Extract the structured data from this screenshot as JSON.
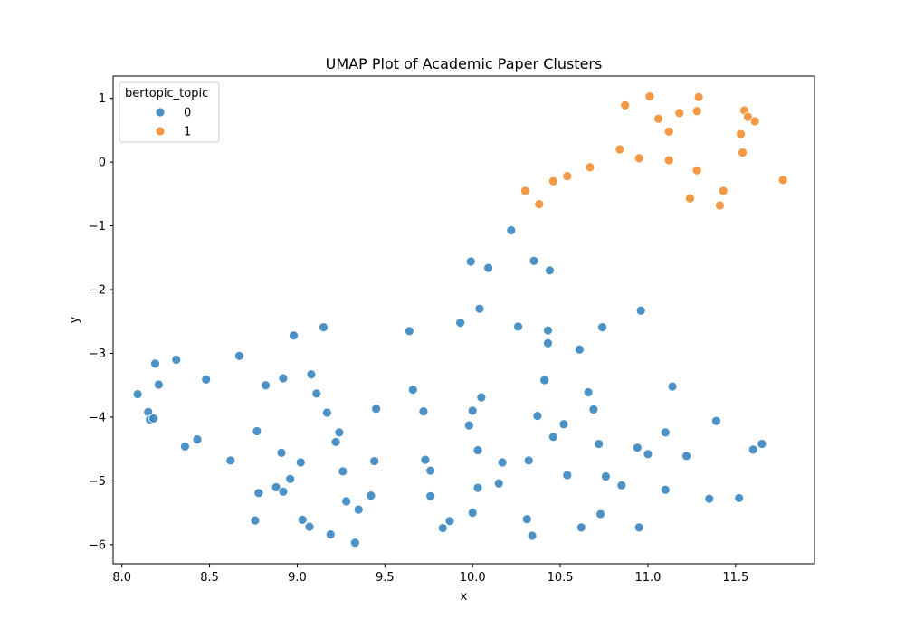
{
  "chart_data": {
    "type": "scatter",
    "title": "UMAP Plot of Academic Paper Clusters",
    "xlabel": "x",
    "ylabel": "y",
    "xlim": [
      7.95,
      11.95
    ],
    "ylim": [
      -6.3,
      1.35
    ],
    "xticks": [
      8.0,
      8.5,
      9.0,
      9.5,
      10.0,
      10.5,
      11.0,
      11.5
    ],
    "xtick_labels": [
      "8.0",
      "8.5",
      "9.0",
      "9.5",
      "10.0",
      "10.5",
      "11.0",
      "11.5"
    ],
    "yticks": [
      1,
      0,
      -1,
      -2,
      -3,
      -4,
      -5,
      -6
    ],
    "ytick_labels": [
      "1",
      "0",
      "−1",
      "−2",
      "−3",
      "−4",
      "−5",
      "−6"
    ],
    "grid": false,
    "legend": {
      "title": "bertopic_topic",
      "placement": "top-left",
      "entries": [
        "0",
        "1"
      ]
    },
    "series": [
      {
        "name": "0",
        "color": "#3a86c1",
        "points": [
          [
            8.09,
            -3.64
          ],
          [
            8.15,
            -3.92
          ],
          [
            8.16,
            -4.04
          ],
          [
            8.18,
            -4.02
          ],
          [
            8.19,
            -3.16
          ],
          [
            8.21,
            -3.49
          ],
          [
            8.31,
            -3.1
          ],
          [
            8.36,
            -4.46
          ],
          [
            8.43,
            -4.35
          ],
          [
            8.48,
            -3.41
          ],
          [
            8.62,
            -4.68
          ],
          [
            8.67,
            -3.04
          ],
          [
            8.76,
            -5.62
          ],
          [
            8.77,
            -4.22
          ],
          [
            8.78,
            -5.19
          ],
          [
            8.82,
            -3.5
          ],
          [
            8.88,
            -5.1
          ],
          [
            8.91,
            -4.56
          ],
          [
            8.92,
            -5.17
          ],
          [
            8.92,
            -3.39
          ],
          [
            8.96,
            -4.97
          ],
          [
            8.98,
            -2.72
          ],
          [
            9.02,
            -4.71
          ],
          [
            9.03,
            -5.61
          ],
          [
            9.07,
            -5.72
          ],
          [
            9.08,
            -3.33
          ],
          [
            9.11,
            -3.63
          ],
          [
            9.15,
            -2.59
          ],
          [
            9.17,
            -3.93
          ],
          [
            9.19,
            -5.84
          ],
          [
            9.22,
            -4.39
          ],
          [
            9.24,
            -4.24
          ],
          [
            9.26,
            -4.85
          ],
          [
            9.28,
            -5.32
          ],
          [
            9.33,
            -5.97
          ],
          [
            9.35,
            -5.45
          ],
          [
            9.42,
            -5.23
          ],
          [
            9.44,
            -4.69
          ],
          [
            9.45,
            -3.87
          ],
          [
            9.64,
            -2.65
          ],
          [
            9.66,
            -3.57
          ],
          [
            9.72,
            -3.91
          ],
          [
            9.73,
            -4.67
          ],
          [
            9.76,
            -4.84
          ],
          [
            9.76,
            -5.24
          ],
          [
            9.83,
            -5.74
          ],
          [
            9.87,
            -5.63
          ],
          [
            9.93,
            -2.52
          ],
          [
            9.98,
            -4.13
          ],
          [
            9.99,
            -1.56
          ],
          [
            10.0,
            -3.9
          ],
          [
            10.0,
            -5.5
          ],
          [
            10.03,
            -4.52
          ],
          [
            10.03,
            -5.11
          ],
          [
            10.04,
            -2.3
          ],
          [
            10.05,
            -3.69
          ],
          [
            10.09,
            -1.66
          ],
          [
            10.15,
            -5.04
          ],
          [
            10.17,
            -4.71
          ],
          [
            10.22,
            -1.07
          ],
          [
            10.26,
            -2.58
          ],
          [
            10.31,
            -5.6
          ],
          [
            10.32,
            -4.68
          ],
          [
            10.34,
            -5.86
          ],
          [
            10.35,
            -1.55
          ],
          [
            10.37,
            -3.98
          ],
          [
            10.41,
            -3.42
          ],
          [
            10.43,
            -2.64
          ],
          [
            10.43,
            -2.84
          ],
          [
            10.44,
            -1.7
          ],
          [
            10.46,
            -4.31
          ],
          [
            10.52,
            -4.11
          ],
          [
            10.54,
            -4.91
          ],
          [
            10.61,
            -2.94
          ],
          [
            10.62,
            -5.73
          ],
          [
            10.66,
            -3.61
          ],
          [
            10.69,
            -3.88
          ],
          [
            10.72,
            -4.42
          ],
          [
            10.73,
            -5.52
          ],
          [
            10.74,
            -2.59
          ],
          [
            10.76,
            -4.93
          ],
          [
            10.85,
            -5.07
          ],
          [
            10.94,
            -4.48
          ],
          [
            10.95,
            -5.73
          ],
          [
            10.96,
            -2.33
          ],
          [
            11.0,
            -4.58
          ],
          [
            11.1,
            -5.14
          ],
          [
            11.1,
            -4.24
          ],
          [
            11.14,
            -3.52
          ],
          [
            11.22,
            -4.61
          ],
          [
            11.35,
            -5.28
          ],
          [
            11.39,
            -4.06
          ],
          [
            11.52,
            -5.27
          ],
          [
            11.6,
            -4.51
          ],
          [
            11.65,
            -4.42
          ]
        ]
      },
      {
        "name": "1",
        "color": "#f48e32",
        "points": [
          [
            10.3,
            -0.45
          ],
          [
            10.38,
            -0.66
          ],
          [
            10.46,
            -0.3
          ],
          [
            10.54,
            -0.22
          ],
          [
            10.67,
            -0.08
          ],
          [
            10.84,
            0.2
          ],
          [
            10.87,
            0.89
          ],
          [
            10.95,
            0.06
          ],
          [
            11.01,
            1.03
          ],
          [
            11.06,
            0.68
          ],
          [
            11.12,
            0.48
          ],
          [
            11.12,
            0.03
          ],
          [
            11.18,
            0.77
          ],
          [
            11.24,
            -0.57
          ],
          [
            11.28,
            0.8
          ],
          [
            11.28,
            -0.13
          ],
          [
            11.29,
            1.02
          ],
          [
            11.41,
            -0.68
          ],
          [
            11.43,
            -0.45
          ],
          [
            11.53,
            0.44
          ],
          [
            11.54,
            0.15
          ],
          [
            11.55,
            0.81
          ],
          [
            11.57,
            0.71
          ],
          [
            11.61,
            0.64
          ],
          [
            11.77,
            -0.28
          ]
        ]
      }
    ]
  }
}
